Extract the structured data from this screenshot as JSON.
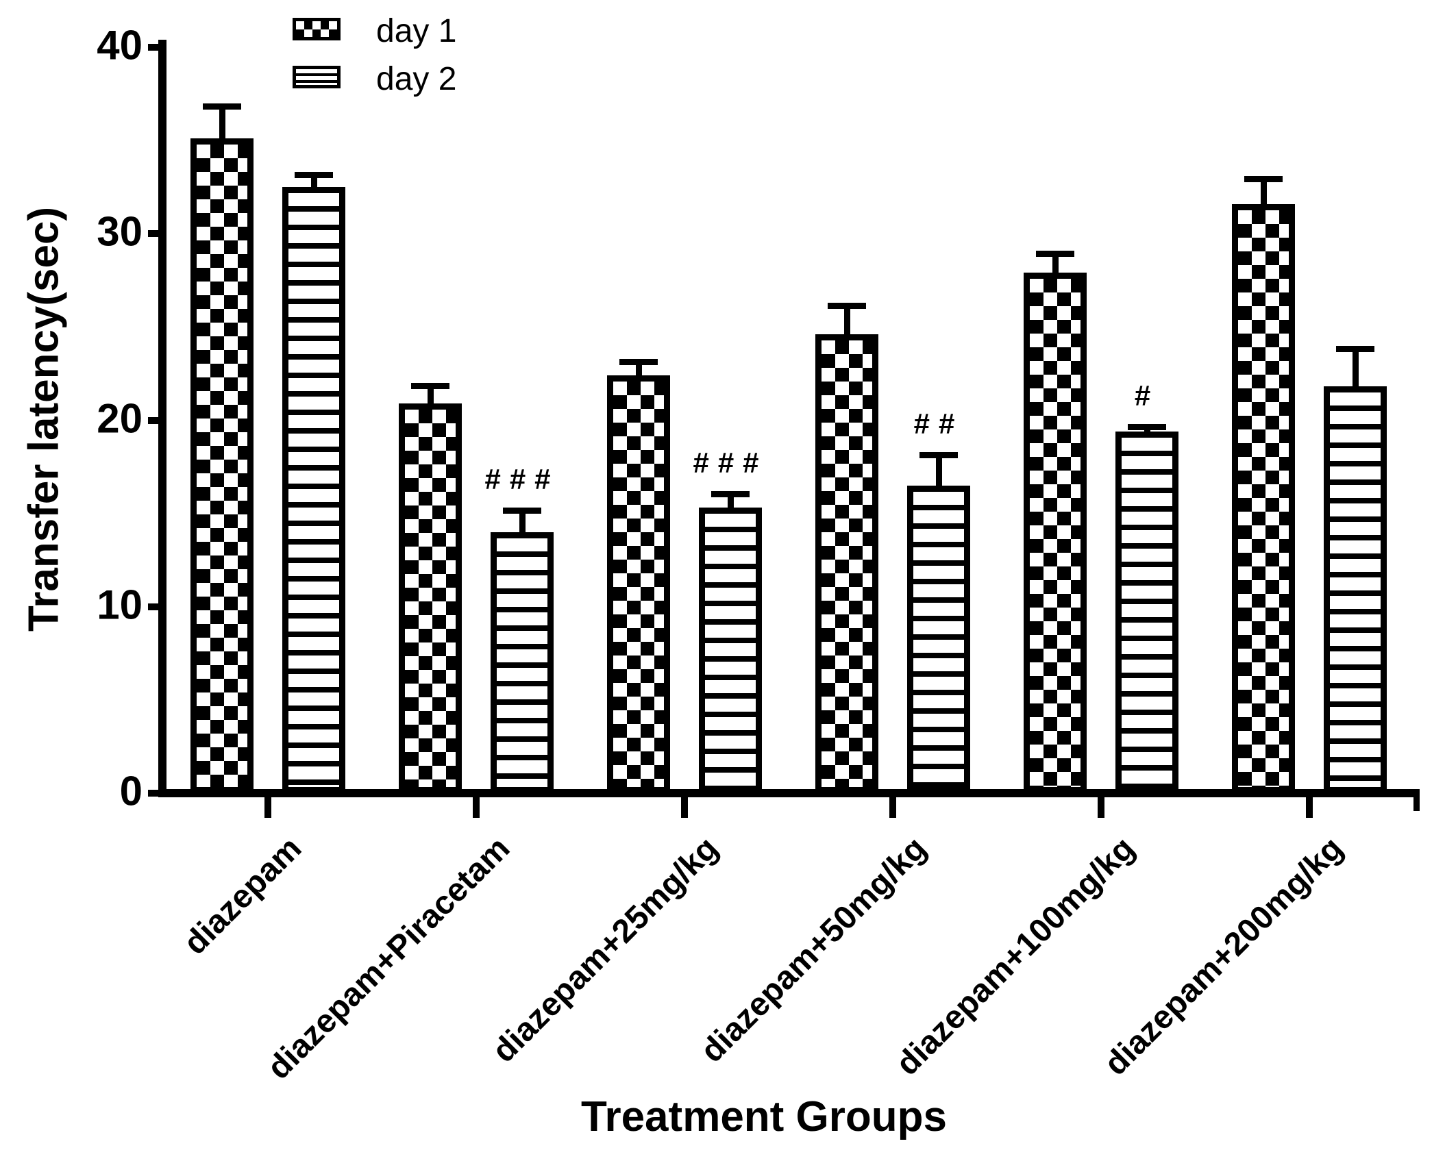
{
  "chart_data": {
    "type": "bar",
    "title": "",
    "xlabel": "Treatment Groups",
    "ylabel": "Transfer latency(sec)",
    "ylim": [
      0,
      40
    ],
    "yticks": [
      0,
      10,
      20,
      30,
      40
    ],
    "grid": false,
    "legend_position": "top-left",
    "colors": {
      "foreground": "#000000",
      "background": "#ffffff"
    },
    "categories": [
      "diazepam",
      "diazepam+Piracetam",
      "diazepam+25mg/kg",
      "diazepam+50mg/kg",
      "diazepam+100mg/kg",
      "diazepam+200mg/kg"
    ],
    "series": [
      {
        "name": "day 1",
        "pattern": "checkerboard",
        "values": [
          35.1,
          20.9,
          22.4,
          24.6,
          27.9,
          31.6
        ],
        "errors": [
          1.9,
          1.1,
          0.9,
          1.7,
          1.2,
          1.5
        ]
      },
      {
        "name": "day 2",
        "pattern": "horizontal-stripes",
        "values": [
          32.5,
          14.0,
          15.3,
          16.5,
          19.4,
          21.8
        ],
        "errors": [
          0.8,
          1.3,
          0.9,
          1.8,
          0.4,
          2.2
        ]
      }
    ],
    "error_bars": "upper only",
    "significance_markers": {
      "applies_to_series": "day 2",
      "values": [
        "",
        "###",
        "###",
        "##",
        "#",
        ""
      ]
    }
  }
}
